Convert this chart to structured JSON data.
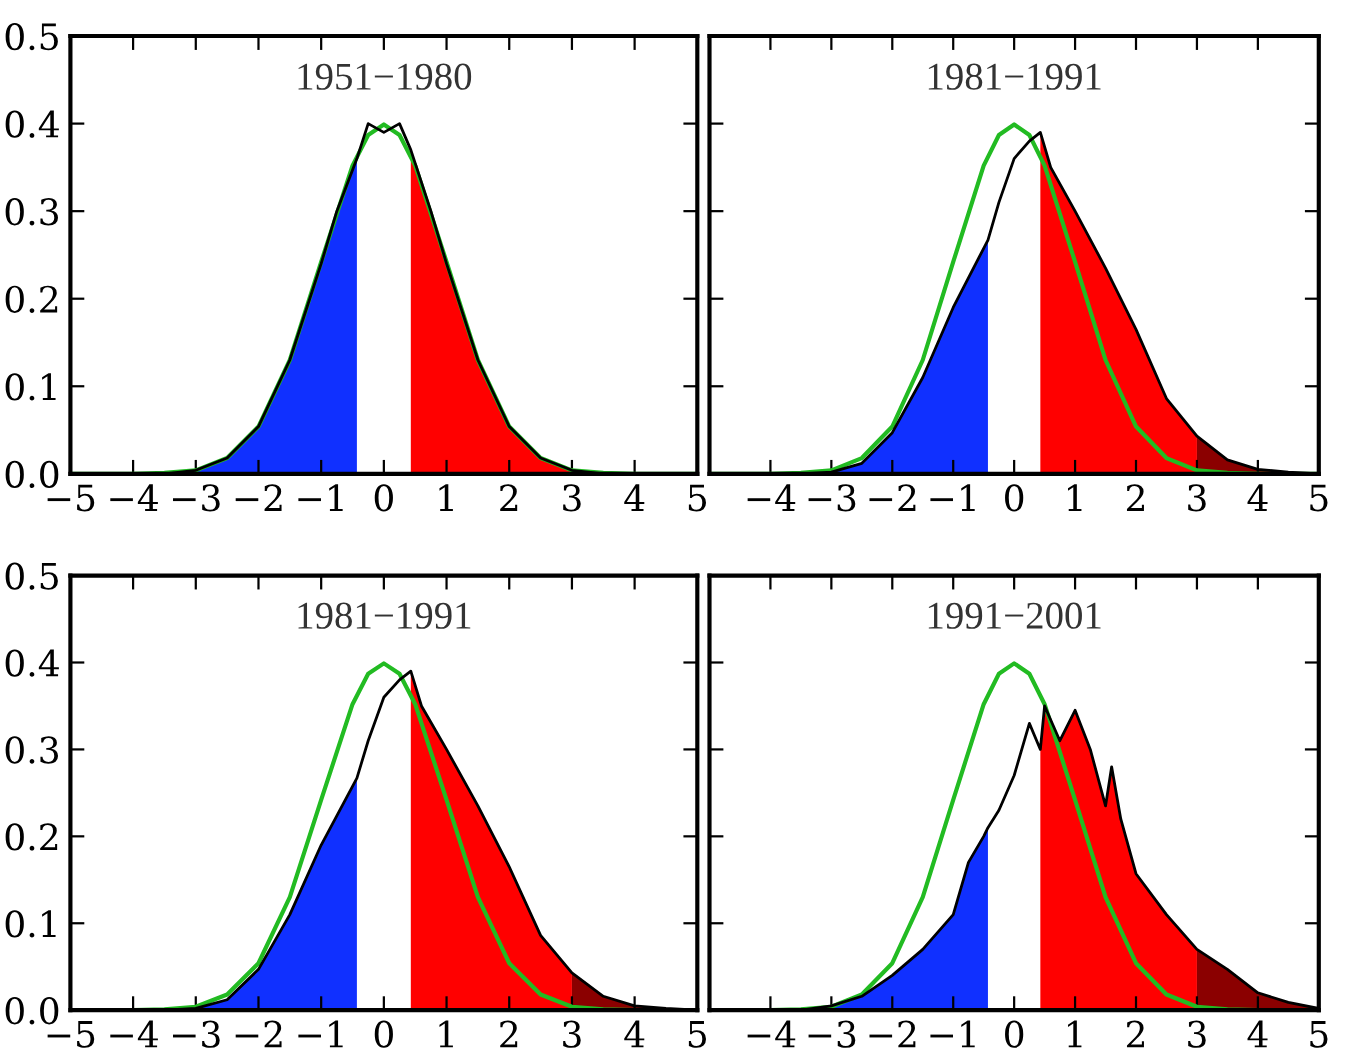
{
  "chart_data": [
    {
      "type": "area",
      "title": "1951−1980",
      "xlim": [
        -5,
        5
      ],
      "ylim": [
        0,
        0.5
      ],
      "xticks": [
        -5,
        -4,
        -3,
        -2,
        -1,
        0,
        1,
        2,
        3,
        4,
        5
      ],
      "yticks": [
        {
          "value": 0,
          "label": "0.0"
        },
        0.1,
        0.2,
        0.3,
        0.4,
        0.5
      ],
      "grid": false,
      "legend": false,
      "series": [
        {
          "color": "#1030ff",
          "x": [
            -3.5,
            -3,
            -2.5,
            -2,
            -1.5,
            -1,
            -0.75,
            -0.43
          ],
          "values": [
            0,
            0.004,
            0.018,
            0.054,
            0.13,
            0.24,
            0.3,
            0.36
          ]
        },
        {
          "color": "#ff0000",
          "x": [
            0.43,
            0.75,
            1,
            1.5,
            2,
            2.5,
            3,
            3.5
          ],
          "values": [
            0.37,
            0.3,
            0.24,
            0.13,
            0.054,
            0.018,
            0.004,
            0
          ]
        },
        {
          "type": "line",
          "color": "#22bb22",
          "x": [
            -5,
            -4,
            -3.5,
            -3,
            -2.5,
            -2,
            -1.5,
            -1,
            -0.5,
            -0.25,
            0,
            0.25,
            0.5,
            1,
            1.5,
            2,
            2.5,
            3,
            3.5,
            4,
            5
          ],
          "values": [
            0,
            0,
            0.001,
            0.004,
            0.018,
            0.054,
            0.13,
            0.242,
            0.352,
            0.387,
            0.399,
            0.387,
            0.352,
            0.242,
            0.13,
            0.054,
            0.018,
            0.004,
            0.001,
            0,
            0
          ]
        },
        {
          "type": "line",
          "color": "#000000",
          "x": [
            -3.5,
            -3,
            -2.5,
            -2,
            -1.5,
            -1,
            -0.75,
            -0.43,
            -0.25,
            0,
            0.25,
            0.43,
            0.75,
            1,
            1.5,
            2,
            2.5,
            3,
            3.5
          ],
          "values": [
            0,
            0.004,
            0.018,
            0.054,
            0.13,
            0.24,
            0.3,
            0.36,
            0.4,
            0.39,
            0.4,
            0.37,
            0.3,
            0.24,
            0.13,
            0.054,
            0.018,
            0.004,
            0
          ]
        }
      ]
    },
    {
      "type": "area",
      "title": "1981−1991",
      "xlim": [
        -5,
        5
      ],
      "ylim": [
        0,
        0.5
      ],
      "xticks": [
        {
          "value": -5,
          "label": null
        },
        -4,
        -3,
        -2,
        -1,
        0,
        1,
        2,
        3,
        4,
        5
      ],
      "yticks": [
        0,
        0.1,
        0.2,
        0.3,
        0.4,
        0.5
      ],
      "tick_labels": "x",
      "grid": false,
      "legend": false,
      "series": [
        {
          "color": "#1030ff",
          "x": [
            -3.5,
            -3,
            -2.5,
            -2,
            -1.5,
            -1,
            -0.43
          ],
          "values": [
            0,
            0.002,
            0.012,
            0.047,
            0.11,
            0.19,
            0.267
          ]
        },
        {
          "color": "#ff0000",
          "x": [
            0.43,
            0.6,
            1,
            1.5,
            2,
            2.5,
            3
          ],
          "values": [
            0.39,
            0.35,
            0.3,
            0.235,
            0.165,
            0.086,
            0.043
          ]
        },
        {
          "color": "#8b0000",
          "x": [
            3,
            3.5,
            4,
            4.5,
            5
          ],
          "values": [
            0.043,
            0.016,
            0.005,
            0.002,
            0
          ]
        },
        {
          "type": "line",
          "color": "#22bb22",
          "x": [
            -5,
            -4,
            -3.5,
            -3,
            -2.5,
            -2,
            -1.5,
            -1,
            -0.5,
            -0.25,
            0,
            0.25,
            0.5,
            1,
            1.5,
            2,
            2.5,
            3,
            3.5,
            4,
            5
          ],
          "values": [
            0,
            0,
            0.001,
            0.004,
            0.018,
            0.054,
            0.13,
            0.242,
            0.352,
            0.387,
            0.399,
            0.387,
            0.352,
            0.242,
            0.13,
            0.054,
            0.018,
            0.004,
            0.001,
            0,
            0
          ]
        },
        {
          "type": "line",
          "color": "#000000",
          "x": [
            -3.5,
            -3,
            -2.5,
            -2,
            -1.5,
            -1,
            -0.43,
            -0.25,
            0,
            0.25,
            0.43,
            0.6,
            1,
            1.5,
            2,
            2.5,
            3,
            3.5,
            4,
            4.5,
            5
          ],
          "values": [
            0,
            0.002,
            0.012,
            0.047,
            0.11,
            0.19,
            0.267,
            0.31,
            0.36,
            0.38,
            0.39,
            0.35,
            0.3,
            0.235,
            0.165,
            0.086,
            0.043,
            0.016,
            0.005,
            0.002,
            0
          ]
        }
      ]
    },
    {
      "type": "area",
      "title": "1981−1991",
      "xlim": [
        -5,
        5
      ],
      "ylim": [
        0,
        0.5
      ],
      "xticks": [
        -5,
        -4,
        -3,
        -2,
        -1,
        0,
        1,
        2,
        3,
        4,
        5
      ],
      "yticks": [
        {
          "value": 0,
          "label": "0.0"
        },
        0.1,
        0.2,
        0.3,
        0.4,
        0.5
      ],
      "grid": false,
      "legend": false,
      "series": [
        {
          "color": "#1030ff",
          "x": [
            -3.5,
            -3,
            -2.5,
            -2,
            -1.5,
            -1,
            -0.43
          ],
          "values": [
            0,
            0.002,
            0.012,
            0.047,
            0.11,
            0.19,
            0.267
          ]
        },
        {
          "color": "#ff0000",
          "x": [
            0.43,
            0.6,
            1,
            1.5,
            2,
            2.5,
            3
          ],
          "values": [
            0.39,
            0.35,
            0.3,
            0.235,
            0.165,
            0.086,
            0.043
          ]
        },
        {
          "color": "#8b0000",
          "x": [
            3,
            3.5,
            4,
            4.5,
            5
          ],
          "values": [
            0.043,
            0.016,
            0.005,
            0.002,
            0
          ]
        },
        {
          "type": "line",
          "color": "#22bb22",
          "x": [
            -5,
            -4,
            -3.5,
            -3,
            -2.5,
            -2,
            -1.5,
            -1,
            -0.5,
            -0.25,
            0,
            0.25,
            0.5,
            1,
            1.5,
            2,
            2.5,
            3,
            3.5,
            4,
            5
          ],
          "values": [
            0,
            0,
            0.001,
            0.004,
            0.018,
            0.054,
            0.13,
            0.242,
            0.352,
            0.387,
            0.399,
            0.387,
            0.352,
            0.242,
            0.13,
            0.054,
            0.018,
            0.004,
            0.001,
            0,
            0
          ]
        },
        {
          "type": "line",
          "color": "#000000",
          "x": [
            -3.5,
            -3,
            -2.5,
            -2,
            -1.5,
            -1,
            -0.43,
            -0.25,
            0,
            0.25,
            0.43,
            0.6,
            1,
            1.5,
            2,
            2.5,
            3,
            3.5,
            4,
            4.5,
            5
          ],
          "values": [
            0,
            0.002,
            0.012,
            0.047,
            0.11,
            0.19,
            0.267,
            0.31,
            0.36,
            0.38,
            0.39,
            0.35,
            0.3,
            0.235,
            0.165,
            0.086,
            0.043,
            0.016,
            0.005,
            0.002,
            0
          ]
        }
      ]
    },
    {
      "type": "area",
      "title": "1991−2001",
      "xlim": [
        -5,
        5
      ],
      "ylim": [
        0,
        0.5
      ],
      "xticks": [
        {
          "value": -5,
          "label": null
        },
        -4,
        -3,
        -2,
        -1,
        0,
        1,
        2,
        3,
        4,
        5
      ],
      "yticks": [
        0,
        0.1,
        0.2,
        0.3,
        0.4,
        0.5
      ],
      "tick_labels": "x",
      "grid": false,
      "legend": false,
      "series": [
        {
          "color": "#1030ff",
          "x": [
            -3.5,
            -3,
            -2.5,
            -2,
            -1.5,
            -1,
            -0.75,
            -0.5,
            -0.43
          ],
          "values": [
            0,
            0.005,
            0.016,
            0.04,
            0.07,
            0.11,
            0.17,
            0.2,
            0.21
          ]
        },
        {
          "color": "#ff0000",
          "x": [
            0.43,
            0.5,
            0.75,
            1,
            1.25,
            1.5,
            1.6,
            1.75,
            2,
            2.5,
            3
          ],
          "values": [
            0.3,
            0.35,
            0.31,
            0.345,
            0.3,
            0.235,
            0.28,
            0.22,
            0.157,
            0.11,
            0.07
          ]
        },
        {
          "color": "#8b0000",
          "x": [
            3,
            3.5,
            4,
            4.5,
            5
          ],
          "values": [
            0.07,
            0.047,
            0.02,
            0.009,
            0.002
          ]
        },
        {
          "type": "line",
          "color": "#22bb22",
          "x": [
            -5,
            -4,
            -3.5,
            -3,
            -2.5,
            -2,
            -1.5,
            -1,
            -0.5,
            -0.25,
            0,
            0.25,
            0.5,
            1,
            1.5,
            2,
            2.5,
            3,
            3.5,
            4,
            5
          ],
          "values": [
            0,
            0,
            0.001,
            0.004,
            0.018,
            0.054,
            0.13,
            0.242,
            0.352,
            0.387,
            0.399,
            0.387,
            0.352,
            0.242,
            0.13,
            0.054,
            0.018,
            0.004,
            0.001,
            0,
            0
          ]
        },
        {
          "type": "line",
          "color": "#000000",
          "x": [
            -3.5,
            -3,
            -2.5,
            -2,
            -1.5,
            -1,
            -0.75,
            -0.5,
            -0.43,
            -0.25,
            0,
            0.25,
            0.43,
            0.5,
            0.75,
            1,
            1.25,
            1.5,
            1.6,
            1.75,
            2,
            2.5,
            3,
            3.5,
            4,
            4.5,
            5
          ],
          "values": [
            0,
            0.005,
            0.016,
            0.04,
            0.07,
            0.11,
            0.17,
            0.2,
            0.21,
            0.23,
            0.27,
            0.33,
            0.3,
            0.35,
            0.31,
            0.345,
            0.3,
            0.235,
            0.28,
            0.22,
            0.157,
            0.11,
            0.07,
            0.047,
            0.02,
            0.009,
            0.002
          ]
        }
      ]
    }
  ]
}
